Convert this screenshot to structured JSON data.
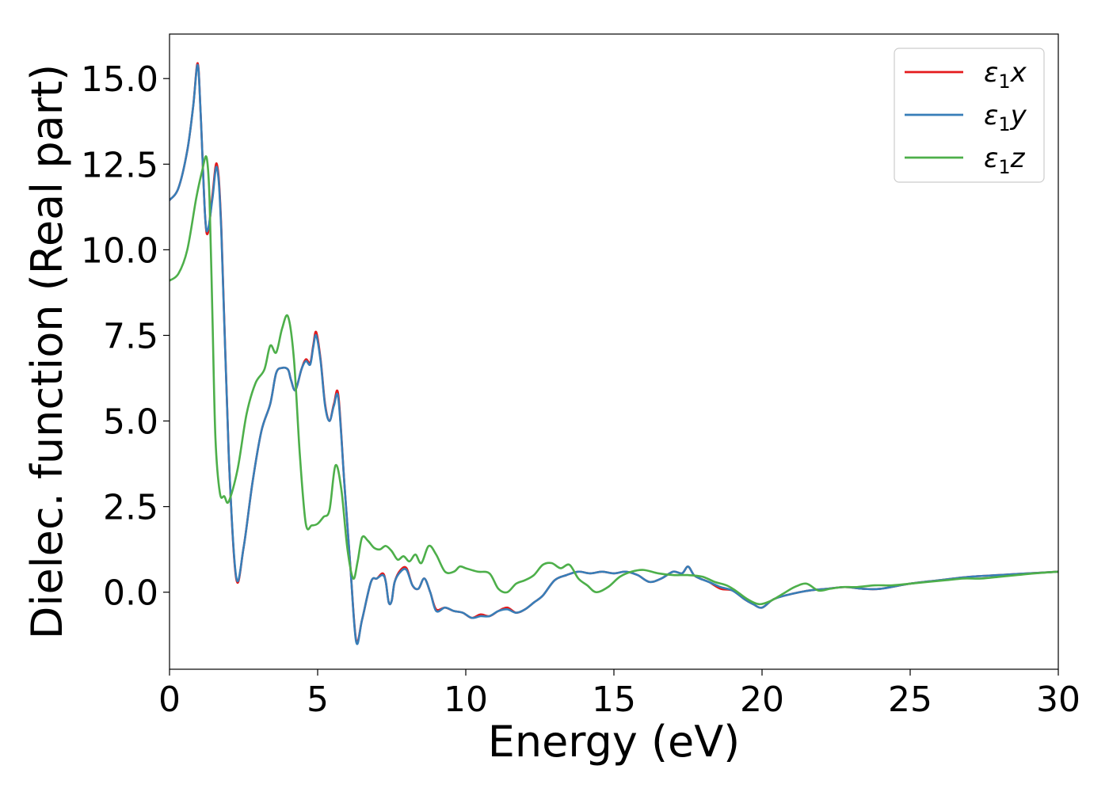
{
  "chart_data": {
    "type": "line",
    "title": "",
    "xlabel": "Energy (eV)",
    "ylabel": "Dielec. function (Real part)",
    "xlim": [
      0,
      30
    ],
    "ylim": [
      -2.25,
      16.3
    ],
    "xticks": [
      0,
      5,
      10,
      15,
      20,
      25,
      30
    ],
    "xtick_labels": [
      "0",
      "5",
      "10",
      "15",
      "20",
      "25",
      "30"
    ],
    "yticks": [
      0.0,
      2.5,
      5.0,
      7.5,
      10.0,
      12.5,
      15.0
    ],
    "ytick_labels": [
      "0.0",
      "2.5",
      "5.0",
      "7.5",
      "10.0",
      "12.5",
      "15.0"
    ],
    "grid": false,
    "legend_position": "top-right",
    "series": [
      {
        "name": "ε₁x",
        "legend_label": {
          "main": "ε",
          "sub": "1",
          "var": "x"
        },
        "color": "#e41a1c",
        "x": [
          0,
          0.3,
          0.6,
          0.8,
          0.95,
          1.05,
          1.2,
          1.3,
          1.45,
          1.6,
          1.75,
          2.0,
          2.25,
          2.5,
          2.8,
          3.1,
          3.4,
          3.6,
          3.8,
          4.0,
          4.1,
          4.25,
          4.45,
          4.6,
          4.75,
          4.85,
          4.95,
          5.1,
          5.25,
          5.4,
          5.55,
          5.7,
          5.9,
          6.1,
          6.3,
          6.5,
          6.8,
          7.0,
          7.2,
          7.3,
          7.4,
          7.5,
          7.6,
          7.8,
          8.0,
          8.2,
          8.4,
          8.6,
          8.8,
          9.0,
          9.3,
          9.6,
          9.9,
          10.2,
          10.5,
          10.8,
          11.1,
          11.4,
          11.7,
          12.0,
          12.3,
          12.6,
          13.0,
          13.4,
          13.8,
          14.2,
          14.6,
          15.0,
          15.4,
          15.8,
          16.2,
          16.6,
          17.0,
          17.3,
          17.5,
          17.7,
          17.9,
          18.2,
          18.6,
          19.0,
          19.4,
          19.7,
          20.0,
          20.4,
          21.0,
          21.6,
          22.2,
          22.8,
          23.4,
          24.0,
          25.0,
          26.0,
          27.0,
          28.0,
          29.0,
          30.0
        ],
        "y": [
          11.45,
          11.8,
          12.9,
          14.2,
          15.45,
          14.0,
          11.0,
          10.5,
          11.6,
          12.5,
          10.6,
          4.0,
          0.4,
          1.3,
          3.2,
          4.7,
          5.5,
          6.4,
          6.55,
          6.5,
          6.2,
          5.9,
          6.5,
          6.8,
          6.7,
          7.2,
          7.6,
          6.8,
          5.5,
          5.0,
          5.5,
          5.75,
          3.2,
          0.8,
          -1.4,
          -0.8,
          0.3,
          0.4,
          0.55,
          0.3,
          -0.3,
          -0.25,
          0.3,
          0.65,
          0.7,
          0.2,
          0.1,
          0.4,
          0.0,
          -0.5,
          -0.45,
          -0.55,
          -0.6,
          -0.75,
          -0.65,
          -0.7,
          -0.55,
          -0.45,
          -0.6,
          -0.5,
          -0.3,
          -0.1,
          0.35,
          0.5,
          0.6,
          0.55,
          0.6,
          0.55,
          0.6,
          0.5,
          0.3,
          0.4,
          0.6,
          0.55,
          0.75,
          0.5,
          0.4,
          0.3,
          0.1,
          0.05,
          -0.2,
          -0.35,
          -0.45,
          -0.2,
          -0.05,
          0.05,
          0.1,
          0.15,
          0.1,
          0.1,
          0.25,
          0.35,
          0.45,
          0.5,
          0.55,
          0.6
        ]
      },
      {
        "name": "ε₁y",
        "legend_label": {
          "main": "ε",
          "sub": "1",
          "var": "y"
        },
        "color": "#377eb8",
        "x": [
          0,
          0.3,
          0.6,
          0.8,
          0.95,
          1.05,
          1.2,
          1.3,
          1.45,
          1.6,
          1.75,
          2.0,
          2.25,
          2.5,
          2.8,
          3.1,
          3.4,
          3.6,
          3.8,
          4.0,
          4.1,
          4.25,
          4.45,
          4.6,
          4.75,
          4.85,
          4.95,
          5.1,
          5.25,
          5.4,
          5.55,
          5.7,
          5.9,
          6.1,
          6.3,
          6.5,
          6.8,
          7.0,
          7.2,
          7.3,
          7.4,
          7.5,
          7.6,
          7.8,
          8.0,
          8.2,
          8.4,
          8.6,
          8.8,
          9.0,
          9.3,
          9.6,
          9.9,
          10.2,
          10.5,
          10.8,
          11.1,
          11.4,
          11.7,
          12.0,
          12.3,
          12.6,
          13.0,
          13.4,
          13.8,
          14.2,
          14.6,
          15.0,
          15.4,
          15.8,
          16.2,
          16.6,
          17.0,
          17.3,
          17.5,
          17.7,
          17.9,
          18.2,
          18.6,
          19.0,
          19.4,
          19.7,
          20.0,
          20.4,
          21.0,
          21.6,
          22.2,
          22.8,
          23.4,
          24.0,
          25.0,
          26.0,
          27.0,
          28.0,
          29.0,
          30.0
        ],
        "y": [
          11.45,
          11.8,
          12.9,
          14.2,
          15.4,
          14.0,
          11.0,
          10.6,
          11.5,
          12.4,
          10.5,
          4.0,
          0.45,
          1.3,
          3.2,
          4.7,
          5.5,
          6.4,
          6.55,
          6.5,
          6.2,
          5.9,
          6.5,
          6.75,
          6.65,
          7.15,
          7.5,
          6.75,
          5.45,
          5.0,
          5.45,
          5.65,
          3.2,
          0.8,
          -1.45,
          -0.8,
          0.3,
          0.4,
          0.5,
          0.3,
          -0.3,
          -0.25,
          0.3,
          0.6,
          0.65,
          0.2,
          0.1,
          0.4,
          0.0,
          -0.55,
          -0.45,
          -0.55,
          -0.6,
          -0.75,
          -0.7,
          -0.7,
          -0.55,
          -0.5,
          -0.6,
          -0.5,
          -0.3,
          -0.1,
          0.35,
          0.5,
          0.6,
          0.55,
          0.6,
          0.55,
          0.6,
          0.5,
          0.3,
          0.4,
          0.6,
          0.55,
          0.75,
          0.5,
          0.4,
          0.3,
          0.15,
          0.05,
          -0.2,
          -0.35,
          -0.45,
          -0.2,
          -0.05,
          0.05,
          0.1,
          0.15,
          0.1,
          0.1,
          0.25,
          0.35,
          0.45,
          0.5,
          0.55,
          0.6
        ]
      },
      {
        "name": "ε₁z",
        "legend_label": {
          "main": "ε",
          "sub": "1",
          "var": "z"
        },
        "color": "#4daf4a",
        "x": [
          0,
          0.3,
          0.6,
          0.9,
          1.1,
          1.25,
          1.35,
          1.45,
          1.55,
          1.7,
          1.85,
          2.0,
          2.3,
          2.6,
          2.9,
          3.2,
          3.4,
          3.6,
          3.8,
          4.0,
          4.2,
          4.4,
          4.6,
          4.8,
          5.0,
          5.2,
          5.4,
          5.6,
          5.8,
          6.0,
          6.2,
          6.35,
          6.5,
          6.7,
          6.9,
          7.1,
          7.3,
          7.5,
          7.7,
          7.9,
          8.1,
          8.3,
          8.5,
          8.75,
          9.0,
          9.3,
          9.6,
          9.8,
          10.0,
          10.4,
          10.8,
          11.1,
          11.4,
          11.7,
          12.0,
          12.3,
          12.6,
          12.9,
          13.2,
          13.5,
          13.8,
          14.1,
          14.4,
          14.8,
          15.2,
          15.6,
          16.0,
          16.5,
          17.0,
          17.5,
          18.0,
          18.4,
          18.8,
          19.1,
          19.5,
          19.9,
          20.3,
          20.7,
          21.1,
          21.5,
          21.9,
          22.3,
          22.7,
          23.2,
          23.8,
          24.4,
          25.0,
          25.6,
          26.2,
          26.8,
          27.4,
          28.0,
          28.6,
          29.2,
          30.0
        ],
        "y": [
          9.1,
          9.3,
          10.0,
          11.5,
          12.3,
          12.7,
          11.5,
          8.0,
          4.5,
          2.9,
          2.8,
          2.65,
          3.6,
          5.2,
          6.1,
          6.5,
          7.2,
          7.0,
          7.7,
          8.05,
          6.8,
          4.0,
          2.0,
          1.95,
          2.0,
          2.2,
          2.4,
          3.7,
          3.0,
          1.3,
          0.4,
          0.9,
          1.6,
          1.5,
          1.3,
          1.25,
          1.35,
          1.2,
          0.95,
          1.05,
          0.9,
          1.1,
          0.85,
          1.35,
          1.1,
          0.6,
          0.6,
          0.75,
          0.7,
          0.6,
          0.55,
          0.1,
          0.0,
          0.25,
          0.35,
          0.5,
          0.8,
          0.85,
          0.7,
          0.8,
          0.4,
          0.2,
          0.0,
          0.15,
          0.45,
          0.6,
          0.65,
          0.55,
          0.5,
          0.5,
          0.45,
          0.3,
          0.2,
          0.05,
          -0.2,
          -0.35,
          -0.25,
          -0.05,
          0.15,
          0.25,
          0.05,
          0.1,
          0.15,
          0.15,
          0.2,
          0.2,
          0.25,
          0.3,
          0.35,
          0.4,
          0.4,
          0.45,
          0.5,
          0.55,
          0.6
        ]
      }
    ]
  }
}
